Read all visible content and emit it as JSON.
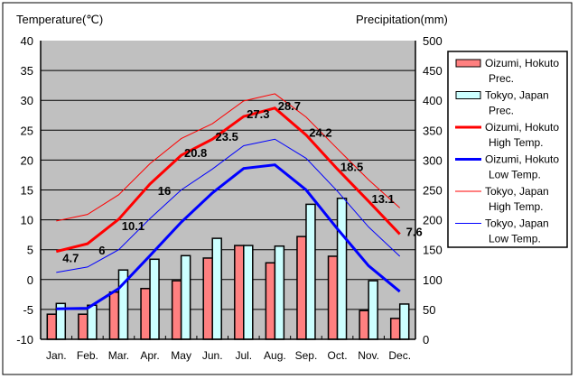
{
  "chart_data": {
    "type": "bar+line",
    "left_axis_label": "Temperature(℃)",
    "right_axis_label": "Precipitation(mm)",
    "ylim_left": [
      -10,
      40
    ],
    "ylim_right": [
      0,
      500
    ],
    "left_ticks": [
      "40",
      "35",
      "30",
      "25",
      "20",
      "15",
      "10",
      "5",
      "0",
      "-5",
      "-10"
    ],
    "right_ticks": [
      "500",
      "450",
      "400",
      "350",
      "300",
      "250",
      "200",
      "150",
      "100",
      "50",
      "0"
    ],
    "categories": [
      "Jan.",
      "Feb.",
      "Mar.",
      "Apr.",
      "May",
      "Jun.",
      "Jul.",
      "Aug.",
      "Sep.",
      "Oct.",
      "Nov.",
      "Dec."
    ],
    "grid": true,
    "legend_placement": "right",
    "colors": {
      "oizumi_prec": "#ff8080",
      "tokyo_prec": "#ccffff",
      "oizumi_high": "#ff0000",
      "oizumi_low": "#0000ff",
      "tokyo_high": "#ff0000",
      "tokyo_low": "#0000ff",
      "plot_bg": "#c0c0c0"
    },
    "series": [
      {
        "name": "Oizumi, Hokuto Prec.",
        "legend": [
          "Oizumi, Hokuto",
          "Prec."
        ],
        "type": "bar",
        "axis": "right",
        "values": [
          42,
          42,
          79,
          85,
          98,
          136,
          157,
          128,
          172,
          139,
          48,
          35
        ]
      },
      {
        "name": "Tokyo, Japan Prec.",
        "legend": [
          "Tokyo, Japan",
          "Prec."
        ],
        "type": "bar",
        "axis": "right",
        "values": [
          60,
          57,
          116,
          134,
          140,
          169,
          157,
          156,
          226,
          236,
          98,
          59
        ]
      },
      {
        "name": "Oizumi, Hokuto High Temp.",
        "legend": [
          "Oizumi, Hokuto",
          "High Temp."
        ],
        "type": "line",
        "width": 3,
        "axis": "left",
        "values": [
          4.7,
          6,
          10.1,
          16,
          20.8,
          23.5,
          27.3,
          28.7,
          24.2,
          18.5,
          13.1,
          7.6
        ],
        "labels": [
          "4.7",
          "6",
          "10.1",
          "16",
          "20.8",
          "23.5",
          "27.3",
          "28.7",
          "24.2",
          "18.5",
          "13.1",
          "7.6"
        ]
      },
      {
        "name": "Oizumi, Hokuto Low Temp.",
        "legend": [
          "Oizumi, Hokuto",
          "Low Temp."
        ],
        "type": "line",
        "width": 3,
        "axis": "left",
        "values": [
          -4.9,
          -4.8,
          -1.5,
          4,
          9.6,
          14.5,
          18.6,
          19.2,
          15,
          8.5,
          2.3,
          -2
        ]
      },
      {
        "name": "Tokyo, Japan High Temp.",
        "legend": [
          "Tokyo, Japan",
          "High Temp."
        ],
        "type": "line",
        "width": 1,
        "axis": "left",
        "values": [
          9.8,
          10.9,
          14.2,
          19.4,
          23.6,
          26.1,
          29.9,
          31.1,
          27.2,
          21.9,
          16.7,
          12.0
        ]
      },
      {
        "name": "Tokyo, Japan Low Temp.",
        "legend": [
          "Tokyo, Japan",
          "Low Temp."
        ],
        "type": "line",
        "width": 1,
        "axis": "left",
        "values": [
          1.2,
          2.1,
          5.0,
          10.2,
          15.0,
          18.5,
          22.4,
          23.5,
          20.3,
          14.8,
          8.8,
          3.9
        ]
      }
    ]
  }
}
